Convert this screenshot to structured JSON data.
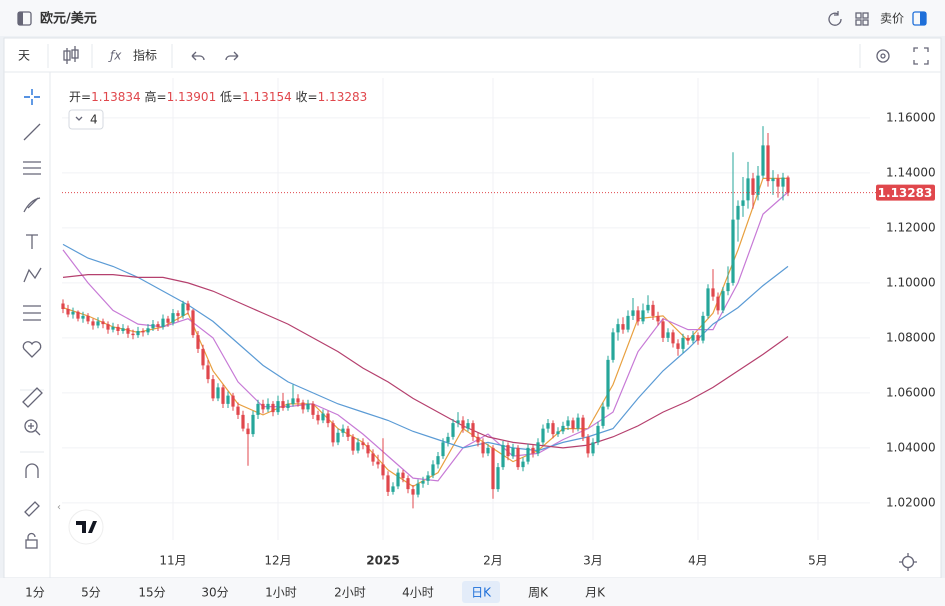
{
  "header": {
    "title": "欧元/美元",
    "price_side": "卖价"
  },
  "toolbar": {
    "period": "天",
    "indicators": "指标"
  },
  "chart_data": {
    "type": "candlestick",
    "ohlc_labels": [
      "开=",
      "高=",
      "低=",
      "收="
    ],
    "indicator_count": 4,
    "up_color": "#26a69a",
    "down_color": "#e0474c",
    "xlim": [
      -0.2,
      161.4
    ],
    "ylim": [
      1.0065,
      1.1745
    ],
    "yticks": [
      {
        "value": 1.02,
        "label": "1.02000"
      },
      {
        "value": 1.04,
        "label": "1.04000"
      },
      {
        "value": 1.06,
        "label": "1.06000"
      },
      {
        "value": 1.08,
        "label": "1.08000"
      },
      {
        "value": 1.1,
        "label": "1.10000"
      },
      {
        "value": 1.12,
        "label": "1.12000"
      },
      {
        "value": 1.14,
        "label": "1.14000"
      },
      {
        "value": 1.16,
        "label": "1.16000"
      }
    ],
    "xticks": [
      {
        "value": 22,
        "label": "11月"
      },
      {
        "value": 43,
        "label": "12月"
      },
      {
        "value": 64,
        "label": "2025"
      },
      {
        "value": 86,
        "label": "2月"
      },
      {
        "value": 106,
        "label": "3月"
      },
      {
        "value": 127,
        "label": "4月"
      },
      {
        "value": 151,
        "label": "5月"
      }
    ],
    "grid": true,
    "last_price_line": true,
    "ohlc": [
      [
        1.0925,
        1.094,
        1.089,
        1.0905
      ],
      [
        1.0905,
        1.092,
        1.0875,
        1.0885
      ],
      [
        1.0885,
        1.091,
        1.087,
        1.0895
      ],
      [
        1.0895,
        1.09,
        1.086,
        1.087
      ],
      [
        1.087,
        1.0895,
        1.0855,
        1.088
      ],
      [
        1.088,
        1.089,
        1.085,
        1.086
      ],
      [
        1.086,
        1.087,
        1.083,
        1.0845
      ],
      [
        1.0845,
        1.0875,
        1.0835,
        1.086
      ],
      [
        1.086,
        1.087,
        1.0835,
        1.085
      ],
      [
        1.085,
        1.086,
        1.0815,
        1.083
      ],
      [
        1.083,
        1.0855,
        1.082,
        1.084
      ],
      [
        1.084,
        1.085,
        1.081,
        1.0825
      ],
      [
        1.0825,
        1.085,
        1.0815,
        1.0835
      ],
      [
        1.0835,
        1.0845,
        1.08,
        1.0815
      ],
      [
        1.0815,
        1.083,
        1.0795,
        1.081
      ],
      [
        1.081,
        1.084,
        1.08,
        1.0825
      ],
      [
        1.0825,
        1.0835,
        1.0805,
        1.082
      ],
      [
        1.082,
        1.085,
        1.081,
        1.0835
      ],
      [
        1.0835,
        1.0865,
        1.0825,
        1.085
      ],
      [
        1.085,
        1.086,
        1.0825,
        1.084
      ],
      [
        1.084,
        1.0885,
        1.083,
        1.087
      ],
      [
        1.087,
        1.088,
        1.084,
        1.0855
      ],
      [
        1.0855,
        1.0905,
        1.0845,
        1.089
      ],
      [
        1.089,
        1.09,
        1.086,
        1.088
      ],
      [
        1.088,
        1.0935,
        1.087,
        1.0925
      ],
      [
        1.0925,
        1.0935,
        1.0885,
        1.09
      ],
      [
        1.09,
        1.0905,
        1.08,
        1.081
      ],
      [
        1.081,
        1.0825,
        1.0745,
        1.076
      ],
      [
        1.076,
        1.0775,
        1.0685,
        1.07
      ],
      [
        1.07,
        1.072,
        1.0635,
        1.065
      ],
      [
        1.065,
        1.0665,
        1.057,
        1.058
      ],
      [
        1.058,
        1.0635,
        1.057,
        1.062
      ],
      [
        1.062,
        1.063,
        1.0545,
        1.056
      ],
      [
        1.056,
        1.0605,
        1.0545,
        1.059
      ],
      [
        1.059,
        1.06,
        1.0535,
        1.055
      ],
      [
        1.055,
        1.0565,
        1.0505,
        1.052
      ],
      [
        1.052,
        1.0535,
        1.046,
        1.047
      ],
      [
        1.047,
        1.049,
        1.0335,
        1.045
      ],
      [
        1.045,
        1.0535,
        1.044,
        1.052
      ],
      [
        1.052,
        1.0575,
        1.0505,
        1.056
      ],
      [
        1.056,
        1.0575,
        1.0525,
        1.054
      ],
      [
        1.054,
        1.058,
        1.053,
        1.056
      ],
      [
        1.056,
        1.057,
        1.0515,
        1.053
      ],
      [
        1.053,
        1.059,
        1.052,
        1.057
      ],
      [
        1.057,
        1.06,
        1.0535,
        1.0545
      ],
      [
        1.0545,
        1.0575,
        1.0535,
        1.056
      ],
      [
        1.056,
        1.063,
        1.055,
        1.058
      ],
      [
        1.058,
        1.0595,
        1.055,
        1.0565
      ],
      [
        1.0565,
        1.0575,
        1.0525,
        1.054
      ],
      [
        1.054,
        1.0575,
        1.053,
        1.056
      ],
      [
        1.056,
        1.057,
        1.0505,
        1.052
      ],
      [
        1.052,
        1.0535,
        1.0485,
        1.05
      ],
      [
        1.05,
        1.054,
        1.049,
        1.0525
      ],
      [
        1.0525,
        1.0535,
        1.0475,
        1.049
      ],
      [
        1.049,
        1.05,
        1.0405,
        1.042
      ],
      [
        1.042,
        1.047,
        1.041,
        1.0455
      ],
      [
        1.0455,
        1.0485,
        1.044,
        1.047
      ],
      [
        1.047,
        1.048,
        1.0425,
        1.044
      ],
      [
        1.044,
        1.045,
        1.0375,
        1.039
      ],
      [
        1.039,
        1.0435,
        1.038,
        1.042
      ],
      [
        1.042,
        1.0435,
        1.0395,
        1.041
      ],
      [
        1.041,
        1.042,
        1.0365,
        1.038
      ],
      [
        1.038,
        1.0395,
        1.0335,
        1.035
      ],
      [
        1.035,
        1.0375,
        1.0325,
        1.034
      ],
      [
        1.034,
        1.0435,
        1.0285,
        1.03
      ],
      [
        1.03,
        1.0315,
        1.0225,
        1.024
      ],
      [
        1.024,
        1.0275,
        1.023,
        1.026
      ],
      [
        1.026,
        1.0325,
        1.025,
        1.031
      ],
      [
        1.031,
        1.032,
        1.0275,
        1.029
      ],
      [
        1.029,
        1.03,
        1.0235,
        1.025
      ],
      [
        1.025,
        1.0265,
        1.018,
        1.023
      ],
      [
        1.023,
        1.0285,
        1.022,
        1.027
      ],
      [
        1.027,
        1.0295,
        1.0255,
        1.028
      ],
      [
        1.028,
        1.0315,
        1.0265,
        1.03
      ],
      [
        1.03,
        1.0355,
        1.029,
        1.034
      ],
      [
        1.034,
        1.0385,
        1.0325,
        1.037
      ],
      [
        1.037,
        1.0435,
        1.036,
        1.042
      ],
      [
        1.042,
        1.0455,
        1.0405,
        1.044
      ],
      [
        1.044,
        1.0505,
        1.043,
        1.049
      ],
      [
        1.049,
        1.053,
        1.0475,
        1.05
      ],
      [
        1.05,
        1.0515,
        1.0455,
        1.047
      ],
      [
        1.047,
        1.0505,
        1.046,
        1.049
      ],
      [
        1.049,
        1.05,
        1.0425,
        1.044
      ],
      [
        1.044,
        1.0455,
        1.0405,
        1.042
      ],
      [
        1.042,
        1.0435,
        1.0365,
        1.038
      ],
      [
        1.038,
        1.0415,
        1.037,
        1.04
      ],
      [
        1.04,
        1.041,
        1.0215,
        1.025
      ],
      [
        1.025,
        1.0345,
        1.024,
        1.033
      ],
      [
        1.033,
        1.0425,
        1.032,
        1.041
      ],
      [
        1.041,
        1.042,
        1.0355,
        1.037
      ],
      [
        1.037,
        1.0415,
        1.036,
        1.04
      ],
      [
        1.04,
        1.041,
        1.032,
        1.033
      ],
      [
        1.033,
        1.0365,
        1.0315,
        1.035
      ],
      [
        1.035,
        1.0415,
        1.034,
        1.04
      ],
      [
        1.04,
        1.041,
        1.0365,
        1.038
      ],
      [
        1.038,
        1.0435,
        1.037,
        1.042
      ],
      [
        1.042,
        1.0485,
        1.041,
        1.047
      ],
      [
        1.047,
        1.0505,
        1.0455,
        1.049
      ],
      [
        1.049,
        1.05,
        1.0435,
        1.045
      ],
      [
        1.045,
        1.0475,
        1.044,
        1.046
      ],
      [
        1.046,
        1.0495,
        1.045,
        1.048
      ],
      [
        1.048,
        1.0515,
        1.0465,
        1.05
      ],
      [
        1.05,
        1.051,
        1.0455,
        1.047
      ],
      [
        1.047,
        1.0525,
        1.046,
        1.051
      ],
      [
        1.051,
        1.052,
        1.0425,
        1.044
      ],
      [
        1.044,
        1.045,
        1.0365,
        1.038
      ],
      [
        1.038,
        1.0435,
        1.037,
        1.042
      ],
      [
        1.042,
        1.0495,
        1.041,
        1.048
      ],
      [
        1.048,
        1.0565,
        1.047,
        1.055
      ],
      [
        1.055,
        1.0735,
        1.054,
        1.072
      ],
      [
        1.072,
        1.0835,
        1.071,
        1.082
      ],
      [
        1.082,
        1.087,
        1.079,
        1.085
      ],
      [
        1.085,
        1.0875,
        1.0815,
        1.083
      ],
      [
        1.083,
        1.09,
        1.082,
        1.088
      ],
      [
        1.088,
        1.0945,
        1.0865,
        1.09
      ],
      [
        1.09,
        1.0915,
        1.0845,
        1.086
      ],
      [
        1.086,
        1.0925,
        1.085,
        1.09
      ],
      [
        1.09,
        1.0955,
        1.089,
        1.092
      ],
      [
        1.092,
        1.0935,
        1.0865,
        1.088
      ],
      [
        1.088,
        1.0895,
        1.0845,
        1.086
      ],
      [
        1.086,
        1.087,
        1.0785,
        1.08
      ],
      [
        1.08,
        1.0835,
        1.0785,
        1.082
      ],
      [
        1.082,
        1.083,
        1.0765,
        1.078
      ],
      [
        1.078,
        1.0795,
        1.0735,
        1.076
      ],
      [
        1.076,
        1.0815,
        1.0745,
        1.08
      ],
      [
        1.08,
        1.081,
        1.0775,
        1.079
      ],
      [
        1.079,
        1.0825,
        1.078,
        1.081
      ],
      [
        1.081,
        1.082,
        1.0775,
        1.079
      ],
      [
        1.079,
        1.0895,
        1.078,
        1.088
      ],
      [
        1.088,
        1.0995,
        1.087,
        1.098
      ],
      [
        1.098,
        1.105,
        1.0935,
        1.095
      ],
      [
        1.095,
        1.0965,
        1.0885,
        1.09
      ],
      [
        1.09,
        1.0985,
        1.089,
        1.097
      ],
      [
        1.097,
        1.106,
        1.0955,
        1.1
      ],
      [
        1.1,
        1.1475,
        1.099,
        1.123
      ],
      [
        1.123,
        1.13,
        1.115,
        1.128
      ],
      [
        1.128,
        1.1385,
        1.124,
        1.13
      ],
      [
        1.13,
        1.144,
        1.127,
        1.138
      ],
      [
        1.138,
        1.14,
        1.127,
        1.132
      ],
      [
        1.132,
        1.1425,
        1.13,
        1.139
      ],
      [
        1.139,
        1.157,
        1.138,
        1.15
      ],
      [
        1.15,
        1.1545,
        1.135,
        1.137
      ],
      [
        1.137,
        1.141,
        1.132,
        1.138
      ],
      [
        1.138,
        1.1395,
        1.131,
        1.135
      ],
      [
        1.135,
        1.14,
        1.13,
        1.1383
      ],
      [
        1.13834,
        1.13901,
        1.13154,
        1.13283
      ]
    ],
    "series": [
      {
        "color": "#e8a040",
        "x": [
          0,
          5,
          10,
          15,
          20,
          25,
          30,
          35,
          40,
          45,
          50,
          55,
          60,
          65,
          70,
          75,
          80,
          85,
          90,
          95,
          100,
          105,
          110,
          115,
          120,
          125,
          130,
          135,
          140,
          145
        ],
        "values": [
          1.091,
          1.088,
          1.084,
          1.082,
          1.084,
          1.089,
          1.068,
          1.056,
          1.052,
          1.056,
          1.056,
          1.047,
          1.042,
          1.032,
          1.026,
          1.031,
          1.047,
          1.041,
          1.035,
          1.039,
          1.047,
          1.047,
          1.063,
          1.087,
          1.088,
          1.079,
          1.089,
          1.112,
          1.138,
          1.138
        ]
      },
      {
        "color": "#c77ad6",
        "x": [
          0,
          5,
          10,
          15,
          20,
          25,
          30,
          35,
          40,
          45,
          50,
          55,
          60,
          65,
          70,
          75,
          80,
          85,
          90,
          95,
          100,
          105,
          110,
          115,
          120,
          125,
          130,
          135,
          140,
          145
        ],
        "values": [
          1.112,
          1.1,
          1.09,
          1.085,
          1.084,
          1.087,
          1.08,
          1.064,
          1.055,
          1.055,
          1.056,
          1.052,
          1.045,
          1.037,
          1.029,
          1.028,
          1.04,
          1.045,
          1.037,
          1.038,
          1.043,
          1.047,
          1.053,
          1.075,
          1.087,
          1.083,
          1.083,
          1.1,
          1.125,
          1.133
        ]
      },
      {
        "color": "#5b9bd5",
        "x": [
          0,
          5,
          10,
          15,
          20,
          25,
          30,
          35,
          40,
          45,
          50,
          55,
          60,
          65,
          70,
          75,
          80,
          85,
          90,
          95,
          100,
          105,
          110,
          115,
          120,
          125,
          130,
          135,
          140,
          145
        ],
        "values": [
          1.114,
          1.109,
          1.106,
          1.102,
          1.097,
          1.092,
          1.086,
          1.078,
          1.07,
          1.064,
          1.06,
          1.056,
          1.053,
          1.05,
          1.046,
          1.043,
          1.04,
          1.042,
          1.04,
          1.039,
          1.042,
          1.044,
          1.047,
          1.058,
          1.068,
          1.076,
          1.085,
          1.091,
          1.099,
          1.106
        ]
      },
      {
        "color": "#b5406e",
        "x": [
          0,
          5,
          10,
          15,
          20,
          25,
          30,
          35,
          40,
          45,
          50,
          55,
          60,
          65,
          70,
          75,
          80,
          85,
          90,
          95,
          100,
          105,
          110,
          115,
          120,
          125,
          130,
          135,
          140,
          145
        ],
        "values": [
          1.102,
          1.103,
          1.103,
          1.102,
          1.102,
          1.1,
          1.097,
          1.093,
          1.089,
          1.085,
          1.08,
          1.075,
          1.069,
          1.064,
          1.058,
          1.053,
          1.048,
          1.044,
          1.042,
          1.041,
          1.04,
          1.041,
          1.044,
          1.048,
          1.053,
          1.057,
          1.062,
          1.068,
          1.074,
          1.0805
        ]
      }
    ]
  },
  "timeframes": {
    "items": [
      "1分",
      "5分",
      "15分",
      "30分",
      "1小时",
      "2小时",
      "4小时",
      "日K",
      "周K",
      "月K"
    ],
    "selected": 7
  }
}
